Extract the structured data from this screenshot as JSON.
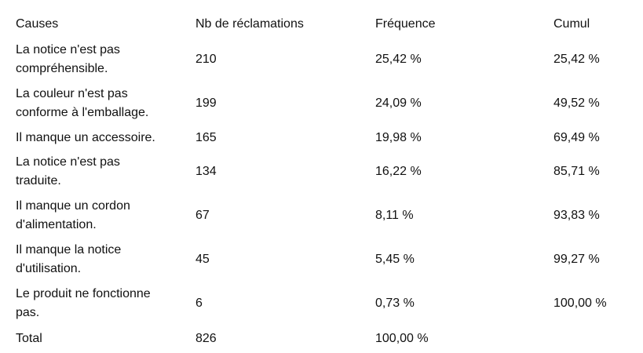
{
  "table": {
    "headers": [
      "Causes",
      "Nb de réclamations",
      "Fréquence",
      "Cumul"
    ],
    "rows": [
      {
        "cause_line1": "La notice n'est pas",
        "cause_line2": "compréhensible.",
        "count": "210",
        "frequency": "25,42 %",
        "cumulative": "25,42 %"
      },
      {
        "cause_line1": "La couleur n'est pas",
        "cause_line2": "conforme à l'emballage.",
        "count": "199",
        "frequency": "24,09 %",
        "cumulative": "49,52 %"
      },
      {
        "cause_line1": "Il manque un accessoire.",
        "cause_line2": "",
        "count": "165",
        "frequency": "19,98 %",
        "cumulative": "69,49 %"
      },
      {
        "cause_line1": "La notice n'est pas",
        "cause_line2": "traduite.",
        "count": "134",
        "frequency": "16,22 %",
        "cumulative": "85,71 %"
      },
      {
        "cause_line1": "Il manque un cordon",
        "cause_line2": "d'alimentation.",
        "count": "67",
        "frequency": "8,11 %",
        "cumulative": "93,83 %"
      },
      {
        "cause_line1": "Il manque la notice",
        "cause_line2": "d'utilisation.",
        "count": "45",
        "frequency": "5,45 %",
        "cumulative": "99,27 %"
      },
      {
        "cause_line1": "Le produit ne fonctionne",
        "cause_line2": "pas.",
        "count": "6",
        "frequency": "0,73 %",
        "cumulative": "100,00 %"
      }
    ],
    "total": {
      "label": "Total",
      "count": "826",
      "frequency": "100,00 %"
    }
  }
}
